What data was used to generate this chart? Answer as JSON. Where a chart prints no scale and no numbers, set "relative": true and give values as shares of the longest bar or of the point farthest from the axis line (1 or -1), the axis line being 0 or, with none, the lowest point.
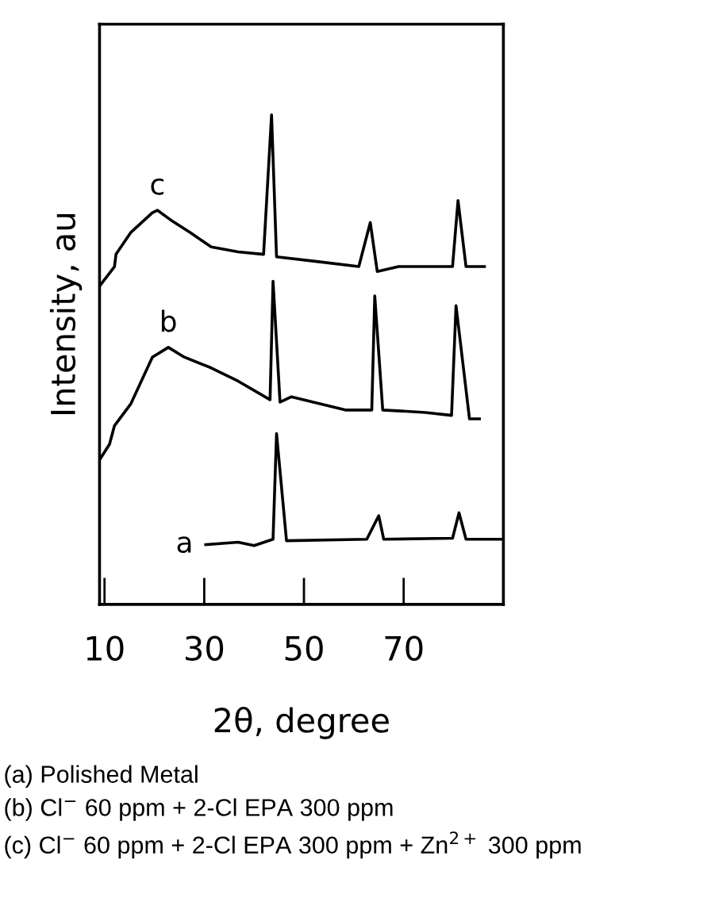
{
  "chart_data": {
    "type": "line",
    "relative": true,
    "xlabel": "2θ, degree",
    "ylabel": "Intensity, au",
    "xlim": [
      9,
      90
    ],
    "xticks": [
      10,
      30,
      50,
      70
    ],
    "grid": false,
    "marker": "none",
    "line_style": "solid",
    "series": [
      {
        "name": "a",
        "color": "#000000",
        "x": [
          30.3,
          36.8,
          40.0,
          43.8,
          44.5,
          46.5,
          62.6,
          65.0,
          66.0,
          79.8,
          81.1,
          82.5,
          90.0
        ],
        "values": [
          0.122,
          0.127,
          0.12,
          0.133,
          0.349,
          0.13,
          0.133,
          0.181,
          0.133,
          0.135,
          0.187,
          0.133,
          0.133
        ]
      },
      {
        "name": "b",
        "color": "#000000",
        "x": [
          9.0,
          11.0,
          12.0,
          15.3,
          19.6,
          22.8,
          26.0,
          31.4,
          36.8,
          43.2,
          43.8,
          45.2,
          47.5,
          58.3,
          63.6,
          64.2,
          65.8,
          74.4,
          79.6,
          80.5,
          83.2,
          85.2
        ],
        "values": [
          0.295,
          0.327,
          0.365,
          0.41,
          0.505,
          0.525,
          0.505,
          0.483,
          0.456,
          0.418,
          0.66,
          0.413,
          0.424,
          0.397,
          0.397,
          0.63,
          0.397,
          0.392,
          0.386,
          0.61,
          0.379,
          0.379
        ]
      },
      {
        "name": "c",
        "color": "#000000",
        "x": [
          9.0,
          12.0,
          12.3,
          15.3,
          19.6,
          20.6,
          23.3,
          27.1,
          31.4,
          36.8,
          41.9,
          43.5,
          44.5,
          52.9,
          61.0,
          63.3,
          64.7,
          69.0,
          79.8,
          80.9,
          82.5,
          86.2
        ],
        "values": [
          0.65,
          0.69,
          0.715,
          0.76,
          0.8,
          0.805,
          0.785,
          0.76,
          0.73,
          0.72,
          0.715,
          1.0,
          0.71,
          0.7,
          0.69,
          0.78,
          0.68,
          0.69,
          0.69,
          0.825,
          0.69,
          0.69
        ]
      }
    ],
    "annotations": [
      "(a) Polished Metal",
      "(b) Cl$^{−}$ 60 ppm + 2-Cl EPA 300 ppm",
      "(c) Cl$^{−}$ 60 ppm + 2-Cl EPA 300 ppm + Zn$^{2+}$ 300 ppm"
    ]
  }
}
